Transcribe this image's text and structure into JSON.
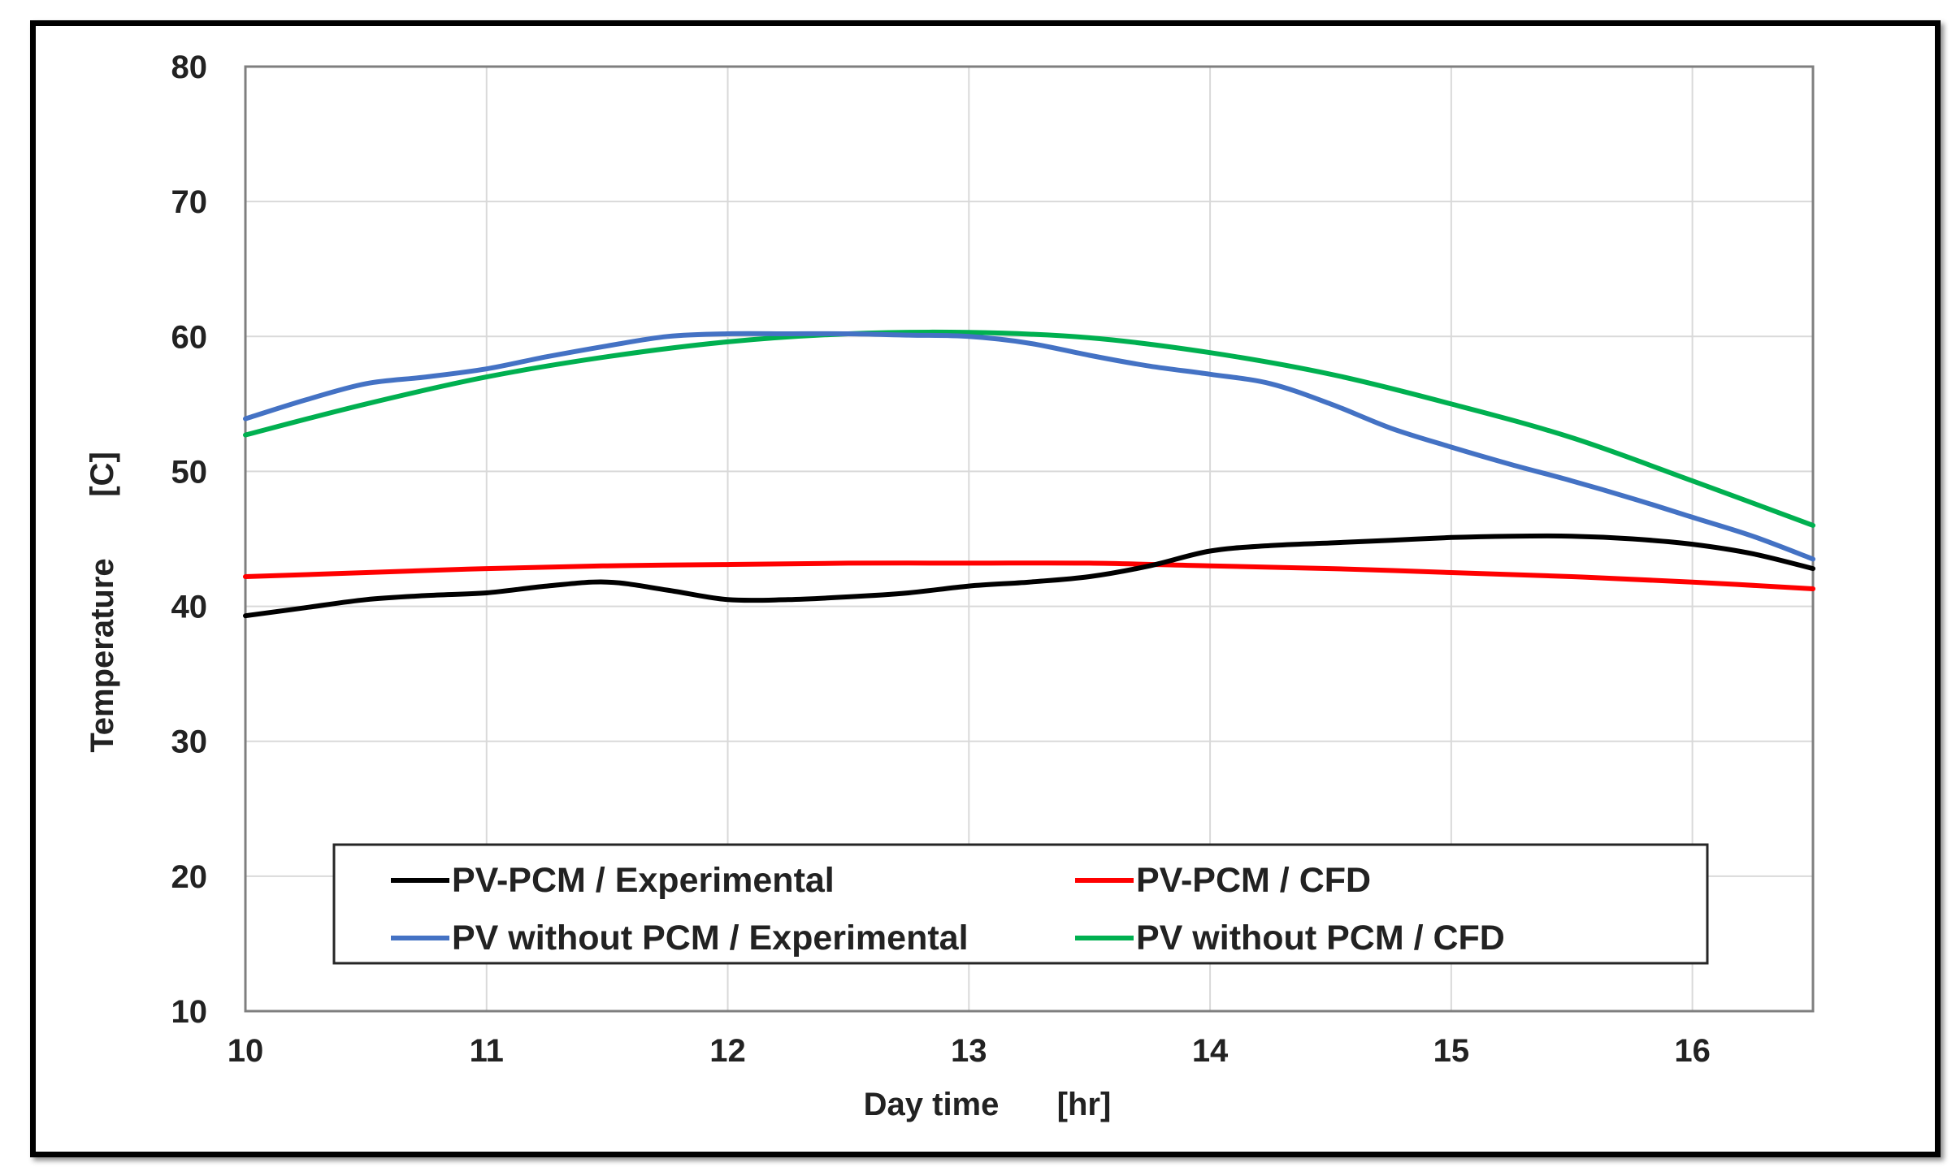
{
  "chart_data": {
    "type": "line",
    "title": "",
    "xlabel": "Day time",
    "xlabel_unit": "[hr]",
    "ylabel": "Temperature",
    "ylabel_unit": "[C]",
    "xlim": [
      10,
      16.5
    ],
    "ylim": [
      10,
      80
    ],
    "x_ticks": [
      10,
      11,
      12,
      13,
      14,
      15,
      16
    ],
    "y_ticks": [
      10,
      20,
      30,
      40,
      50,
      60,
      70,
      80
    ],
    "grid": true,
    "legend_position": "bottom-center",
    "series": [
      {
        "name": "PV-PCM / Experimental",
        "color": "#000000",
        "x": [
          10,
          10.25,
          10.5,
          10.75,
          11,
          11.25,
          11.5,
          11.75,
          12,
          12.25,
          12.5,
          12.75,
          13,
          13.25,
          13.5,
          13.75,
          14,
          14.25,
          14.5,
          14.75,
          15,
          15.25,
          15.5,
          15.75,
          16,
          16.25,
          16.5
        ],
        "y": [
          39.3,
          39.9,
          40.5,
          40.8,
          41.0,
          41.5,
          41.8,
          41.2,
          40.5,
          40.5,
          40.7,
          41.0,
          41.5,
          41.8,
          42.2,
          43.0,
          44.1,
          44.5,
          44.7,
          44.9,
          45.1,
          45.2,
          45.2,
          45.0,
          44.6,
          43.9,
          42.8
        ]
      },
      {
        "name": "PV-PCM / CFD",
        "color": "#ff0000",
        "x": [
          10,
          10.5,
          11,
          11.5,
          12,
          12.5,
          13,
          13.5,
          14,
          14.5,
          15,
          15.5,
          16,
          16.5
        ],
        "y": [
          42.2,
          42.5,
          42.8,
          43.0,
          43.1,
          43.2,
          43.2,
          43.2,
          43.0,
          42.8,
          42.5,
          42.2,
          41.8,
          41.3
        ]
      },
      {
        "name": "PV without PCM / Experimental",
        "color": "#4472c4",
        "x": [
          10,
          10.25,
          10.5,
          10.75,
          11,
          11.25,
          11.5,
          11.75,
          12,
          12.25,
          12.5,
          12.75,
          13,
          13.25,
          13.5,
          13.75,
          14,
          14.25,
          14.5,
          14.75,
          15,
          15.25,
          15.5,
          15.75,
          16,
          16.25,
          16.5
        ],
        "y": [
          53.9,
          55.3,
          56.5,
          57.0,
          57.6,
          58.5,
          59.3,
          60.0,
          60.2,
          60.2,
          60.2,
          60.1,
          60.0,
          59.5,
          58.6,
          57.8,
          57.2,
          56.5,
          55.0,
          53.2,
          51.8,
          50.5,
          49.3,
          48.0,
          46.6,
          45.2,
          43.5
        ]
      },
      {
        "name": "PV without PCM / CFD",
        "color": "#00b050",
        "x": [
          10,
          10.5,
          11,
          11.5,
          12,
          12.5,
          13,
          13.5,
          14,
          14.5,
          15,
          15.5,
          16,
          16.5
        ],
        "y": [
          52.7,
          55.0,
          57.0,
          58.5,
          59.6,
          60.2,
          60.3,
          59.9,
          58.8,
          57.2,
          55.0,
          52.5,
          49.3,
          46.0
        ]
      }
    ]
  }
}
